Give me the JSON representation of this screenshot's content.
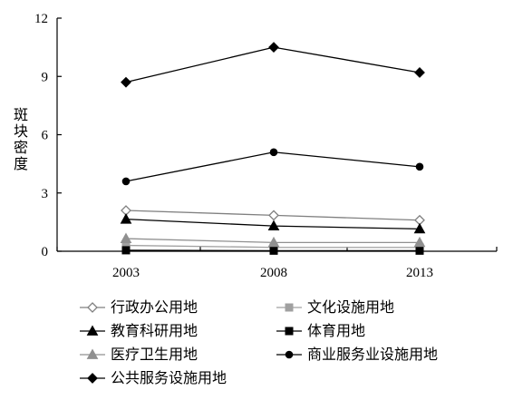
{
  "chart_data": {
    "type": "line",
    "x": [
      "2003",
      "2008",
      "2013"
    ],
    "ylabel": "斑块密度",
    "ylim": [
      0,
      12
    ],
    "yticks": [
      "0",
      "3",
      "6",
      "9",
      "12"
    ],
    "grid": false,
    "legend_position": "bottom",
    "series": [
      {
        "name": "行政办公用地",
        "values": [
          2.1,
          1.85,
          1.6
        ],
        "marker": "diamond-open",
        "color": "#808080"
      },
      {
        "name": "文化设施用地",
        "values": [
          0.3,
          0.2,
          0.2
        ],
        "marker": "square",
        "color": "#a0a0a0"
      },
      {
        "name": "教育科研用地",
        "values": [
          1.65,
          1.3,
          1.15
        ],
        "marker": "triangle",
        "color": "#000000"
      },
      {
        "name": "体育用地",
        "values": [
          0.05,
          0.03,
          0.03
        ],
        "marker": "square",
        "color": "#000000"
      },
      {
        "name": "医疗卫生用地",
        "values": [
          0.65,
          0.45,
          0.45
        ],
        "marker": "triangle",
        "color": "#909090"
      },
      {
        "name": "商业服务业设施用地",
        "values": [
          3.6,
          5.1,
          4.35
        ],
        "marker": "circle",
        "color": "#000000"
      },
      {
        "name": "公共服务设施用地",
        "values": [
          8.7,
          10.5,
          9.2
        ],
        "marker": "diamond",
        "color": "#000000"
      }
    ]
  }
}
